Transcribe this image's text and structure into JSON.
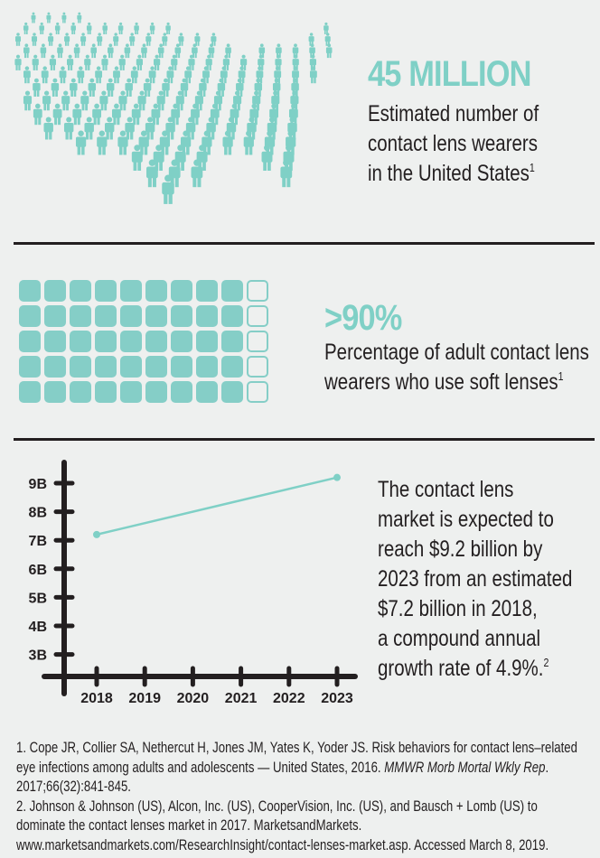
{
  "colors": {
    "accent": "#7fd0c6",
    "text": "#231f20",
    "background": "#eef0ef"
  },
  "stat1": {
    "headline": "45 MILLION",
    "lines": [
      "Estimated number of",
      "contact lens wearers",
      "in the United States"
    ],
    "footnote": "1"
  },
  "stat2": {
    "headline": ">90%",
    "lines": [
      "Percentage of adult contact lens",
      "wearers who use soft lenses"
    ],
    "footnote": "1",
    "filled_fraction": 0.9
  },
  "market": {
    "lines": [
      "The contact lens",
      "market is expected to",
      "reach $9.2 billion by",
      "2023 from an estimated",
      "$7.2 billion in 2018,",
      "a compound annual",
      "growth rate of 4.9%."
    ],
    "footnote": "2"
  },
  "chart_data": {
    "type": "line",
    "x": [
      2018,
      2023
    ],
    "values": [
      7.2,
      9.2
    ],
    "units": "billion USD",
    "xticks": [
      "2018",
      "2019",
      "2020",
      "2021",
      "2022",
      "2023"
    ],
    "yticks": [
      "3B",
      "4B",
      "5B",
      "6B",
      "7B",
      "8B",
      "9B"
    ],
    "ylim": [
      2,
      9.5
    ],
    "xlim": [
      2017.3,
      2023.3
    ],
    "grid": false
  },
  "references": [
    {
      "text": "1. Cope JR, Collier SA, Nethercut H, Jones JM, Yates K, Yoder JS. Risk behaviors for contact lens–related eye infections among adults and adolescents — United States, 2016. ",
      "journal": "MMWR Morb Mortal Wkly Rep",
      "tail": ". 2017;66(32):841-845."
    },
    {
      "text": "2. Johnson & Johnson (US), Alcon, Inc. (US), CooperVision, Inc. (US), and Bausch + Lomb (US) to dominate the contact lenses market in 2017. MarketsandMarkets. www.marketsandmarkets.com/ResearchInsight/contact-lenses-market.asp. Accessed March 8, 2019."
    }
  ]
}
